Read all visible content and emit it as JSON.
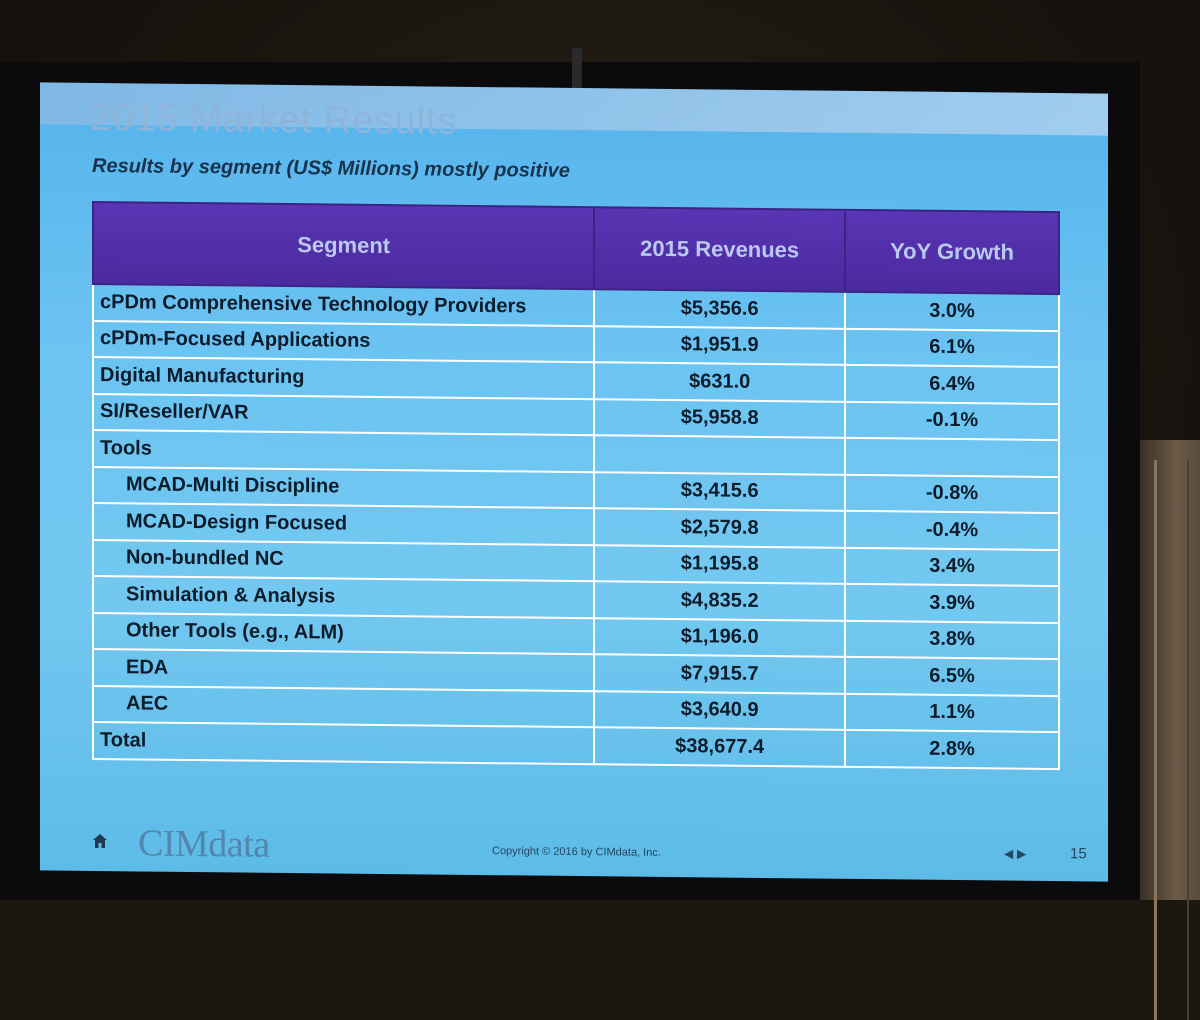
{
  "slide": {
    "title": "2015 Market Results",
    "subtitle": "Results by segment (US$ Millions) mostly positive"
  },
  "table": {
    "headers": [
      "Segment",
      "2015 Revenues",
      "YoY Growth"
    ],
    "rows": [
      {
        "segment": "cPDm Comprehensive Technology Providers",
        "revenue": "$5,356.6",
        "growth": "3.0%"
      },
      {
        "segment": "cPDm-Focused Applications",
        "revenue": "$1,951.9",
        "growth": "6.1%"
      },
      {
        "segment": "Digital Manufacturing",
        "revenue": "$631.0",
        "growth": "6.4%"
      },
      {
        "segment": "SI/Reseller/VAR",
        "revenue": "$5,958.8",
        "growth": "-0.1%"
      },
      {
        "segment": "Tools",
        "revenue": "",
        "growth": ""
      },
      {
        "segment": "MCAD-Multi Discipline",
        "revenue": "$3,415.6",
        "growth": "-0.8%"
      },
      {
        "segment": "MCAD-Design Focused",
        "revenue": "$2,579.8",
        "growth": "-0.4%"
      },
      {
        "segment": "Non-bundled NC",
        "revenue": "$1,195.8",
        "growth": "3.4%"
      },
      {
        "segment": "Simulation & Analysis",
        "revenue": "$4,835.2",
        "growth": "3.9%"
      },
      {
        "segment": "Other Tools (e.g., ALM)",
        "revenue": "$1,196.0",
        "growth": "3.8%"
      },
      {
        "segment": "EDA",
        "revenue": "$7,915.7",
        "growth": "6.5%"
      },
      {
        "segment": "AEC",
        "revenue": "$3,640.9",
        "growth": "1.1%"
      },
      {
        "segment": "Total",
        "revenue": "$38,677.4",
        "growth": "2.8%"
      }
    ]
  },
  "footer": {
    "logo": "CIMdata",
    "copyright": "Copyright © 2016 by CIMdata, Inc.",
    "nav": "◀ ▶",
    "page_number": "15"
  },
  "colors": {
    "slide_background": "#6cc4f2",
    "header_background": "#5a35b4",
    "header_text": "#b9c9f2"
  },
  "icons": {
    "home": "home-icon",
    "nav": "nav-arrows-icon"
  }
}
